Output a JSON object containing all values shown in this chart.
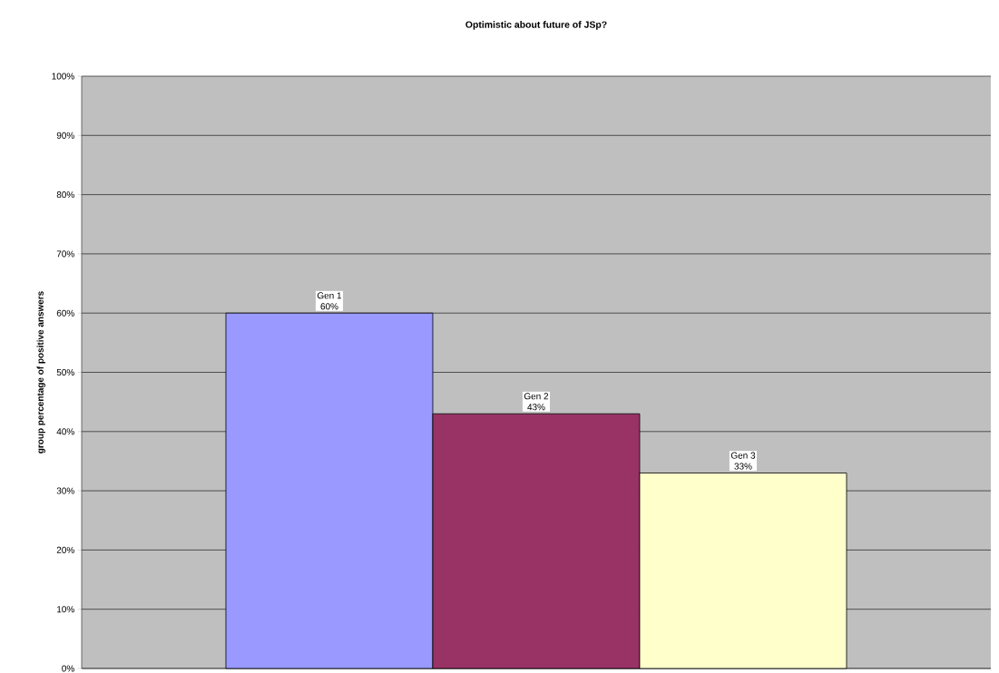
{
  "chart_data": {
    "type": "bar",
    "title": "Optimistic about future of JSp?",
    "ylabel": "group percentage of positive answers",
    "categories": [
      null
    ],
    "series": [
      {
        "name": "Gen 1",
        "color": "#9999ff",
        "values": [
          60
        ],
        "value_labels": [
          "60%"
        ]
      },
      {
        "name": "Gen 2",
        "color": "#993366",
        "values": [
          43
        ],
        "value_labels": [
          "43%"
        ]
      },
      {
        "name": "Gen 3",
        "color": "#ffffcc",
        "values": [
          33
        ],
        "value_labels": [
          "33%"
        ]
      }
    ],
    "ylim": [
      0,
      100
    ],
    "yticks": [
      {
        "value": 0,
        "label": "0%"
      },
      {
        "value": 10,
        "label": "10%"
      },
      {
        "value": 20,
        "label": "20%"
      },
      {
        "value": 30,
        "label": "30%"
      },
      {
        "value": 40,
        "label": "40%"
      },
      {
        "value": 50,
        "label": "50%"
      },
      {
        "value": 60,
        "label": "60%"
      },
      {
        "value": 70,
        "label": "70%"
      },
      {
        "value": 80,
        "label": "80%"
      },
      {
        "value": 90,
        "label": "90%"
      },
      {
        "value": 100,
        "label": "100%"
      }
    ],
    "grid": "y"
  }
}
